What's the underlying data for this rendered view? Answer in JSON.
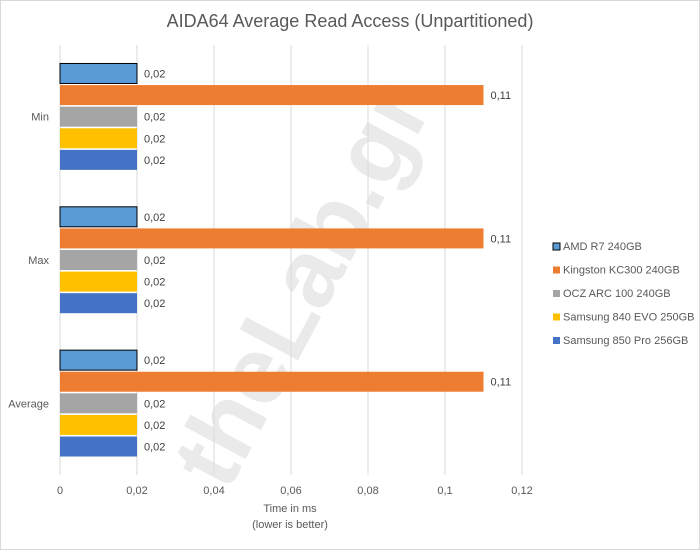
{
  "chart_data": {
    "type": "bar",
    "orientation": "horizontal",
    "title": "AIDA64 Average Read Access (Unpartitioned)",
    "xlabel": "Time  in ms",
    "xlabel_sub": "(lower is better)",
    "ylabel": "",
    "categories": [
      "Min",
      "Max",
      "Average"
    ],
    "xlim": [
      0,
      0.12
    ],
    "xticks": [
      "0",
      "0,02",
      "0,04",
      "0,06",
      "0,08",
      "0,1",
      "0,12"
    ],
    "xtick_values": [
      0,
      0.02,
      0.04,
      0.06,
      0.08,
      0.1,
      0.12
    ],
    "grid": true,
    "legend_position": "right",
    "series": [
      {
        "name": "AMD R7 240GB",
        "values": [
          0.02,
          0.02,
          0.02
        ],
        "labels": [
          "0,02",
          "0,02",
          "0,02"
        ],
        "color": "#5b9bd5",
        "outlined": true
      },
      {
        "name": "Kingston KC300 240GB",
        "values": [
          0.11,
          0.11,
          0.11
        ],
        "labels": [
          "0,11",
          "0,11",
          "0,11"
        ],
        "color": "#ed7d31",
        "outlined": false
      },
      {
        "name": "OCZ ARC 100 240GB",
        "values": [
          0.02,
          0.02,
          0.02
        ],
        "labels": [
          "0,02",
          "0,02",
          "0,02"
        ],
        "color": "#a5a5a5",
        "outlined": false
      },
      {
        "name": "Samsung 840 EVO 250GB",
        "values": [
          0.02,
          0.02,
          0.02
        ],
        "labels": [
          "0,02",
          "0,02",
          "0,02"
        ],
        "color": "#ffc000",
        "outlined": false
      },
      {
        "name": "Samsung 850 Pro 256GB",
        "values": [
          0.02,
          0.02,
          0.02
        ],
        "labels": [
          "0,02",
          "0,02",
          "0,02"
        ],
        "color": "#4472c4",
        "outlined": false
      }
    ]
  },
  "watermark": {
    "text": "theLab.gr",
    "color": "#d9d9d9"
  }
}
